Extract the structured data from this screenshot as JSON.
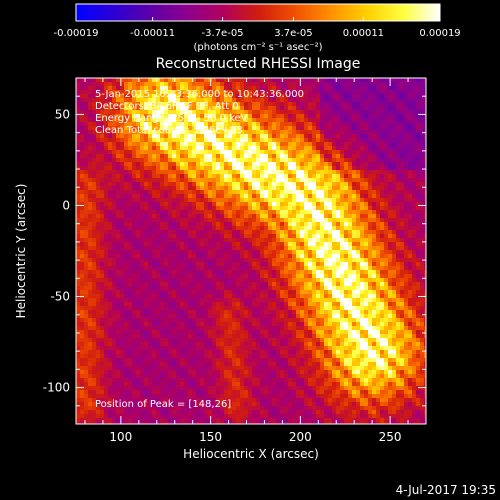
{
  "colorbar": {
    "ticks": [
      "-0.00019",
      "-0.00011",
      "-3.7e-05",
      "3.7e-05",
      "0.00011",
      "0.00019"
    ],
    "unit_label": "(photons cm⁻² s⁻¹ asec⁻²)",
    "colors": [
      "#0000ff",
      "#2a00d8",
      "#5a00a8",
      "#8a0090",
      "#b00060",
      "#d01c10",
      "#f05000",
      "#ff9000",
      "#ffd000",
      "#ffff40",
      "#ffffff"
    ]
  },
  "chart_data": {
    "type": "heatmap",
    "title": "Reconstructed RHESSI Image",
    "xlabel": "Heliocentric X (arcsec)",
    "ylabel": "Heliocentric Y (arcsec)",
    "xlim": [
      75,
      270
    ],
    "ylim": [
      -120,
      70
    ],
    "x_ticks": [
      100,
      150,
      200,
      250
    ],
    "y_ticks": [
      50,
      0,
      -50,
      -100
    ],
    "x_tick_labels": [
      "100",
      "150",
      "200",
      "250"
    ],
    "y_tick_labels": [
      "50",
      "0",
      "-50",
      "-100"
    ],
    "info_lines": [
      "5-Jan-2015 10:33:36.000 to 10:43:36.000",
      "Detectors: 3F 6F 7F 9F, Att 0",
      "Energy Range: 25.0 - 50.0 keV",
      "Clean    Total counts: 5.06e+03"
    ],
    "peak_label": "Position of Peak = [148,26]",
    "peak": [
      148,
      26
    ],
    "value_range": [
      -0.00019,
      0.00019
    ]
  },
  "footer": {
    "timestamp": "4-Jul-2017 19:35"
  }
}
